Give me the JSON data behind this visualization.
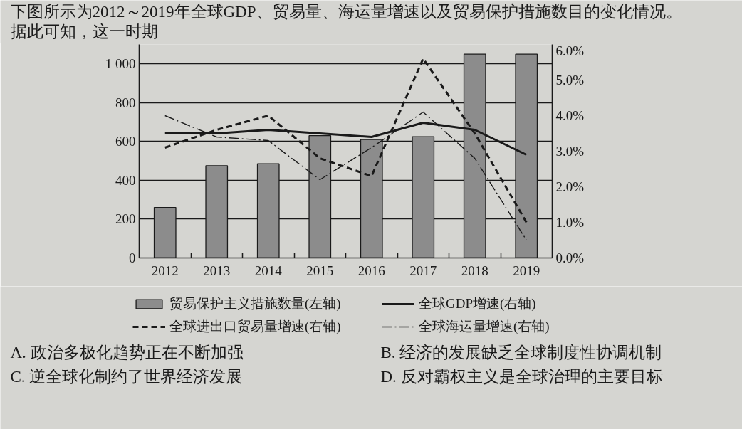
{
  "chart_data": {
    "type": "bar",
    "title": "下图所示为2012～2019年全球GDP、贸易量、海运量增速以及贸易保护措施数目的变化情况。据此可知，这一时期",
    "categories": [
      "2012",
      "2013",
      "2014",
      "2015",
      "2016",
      "2017",
      "2018",
      "2019"
    ],
    "series": [
      {
        "name": "贸易保护主义措施数量(左轴)",
        "color": "#8c8c8c",
        "values": [
          260,
          475,
          485,
          630,
          610,
          625,
          1050,
          1050
        ]
      },
      {
        "name": "全球GDP增速(右轴)",
        "type": "line",
        "axis": "y2",
        "color": "#1a1a1a",
        "line_style": "solid",
        "values": [
          3.5,
          3.5,
          3.6,
          3.5,
          3.4,
          3.8,
          3.6,
          2.9
        ]
      },
      {
        "name": "全球进出口贸易量增速(右轴)",
        "type": "line",
        "axis": "y2",
        "color": "#1a1a1a",
        "line_style": "dashed",
        "values": [
          3.1,
          3.6,
          4.0,
          2.8,
          2.3,
          5.6,
          3.5,
          1.0
        ]
      },
      {
        "name": "全球海运量增速(右轴)",
        "type": "line",
        "axis": "y2",
        "color": "#1a1a1a",
        "line_style": "dashdot",
        "values": [
          4.0,
          3.4,
          3.3,
          2.2,
          3.1,
          4.1,
          2.8,
          0.5
        ]
      }
    ],
    "ylim": [
      0,
      1100
    ],
    "yticks": [
      0,
      200,
      400,
      600,
      800,
      {
        "value": 1000,
        "label": "1 000"
      }
    ],
    "y2lim": [
      0,
      6
    ],
    "y2ticks": [
      {
        "value": 0,
        "label": "0.0%"
      },
      {
        "value": 1,
        "label": "1.0%"
      },
      {
        "value": 2,
        "label": "2.0%"
      },
      {
        "value": 3,
        "label": "3.0%"
      },
      {
        "value": 4,
        "label": "4.0%"
      },
      {
        "value": 5,
        "label": "5.0%"
      },
      {
        "value": 6,
        "label": "6.0%"
      }
    ],
    "grid": "y",
    "legend": "bottom",
    "annotations": [
      "A. 政治多极化趋势正在不断加强",
      "B. 经济的发展缺乏全球制度性协调机制",
      "C. 逆全球化制约了世界经济发展",
      "D. 反对霸权主义是全球治理的主要目标"
    ]
  }
}
